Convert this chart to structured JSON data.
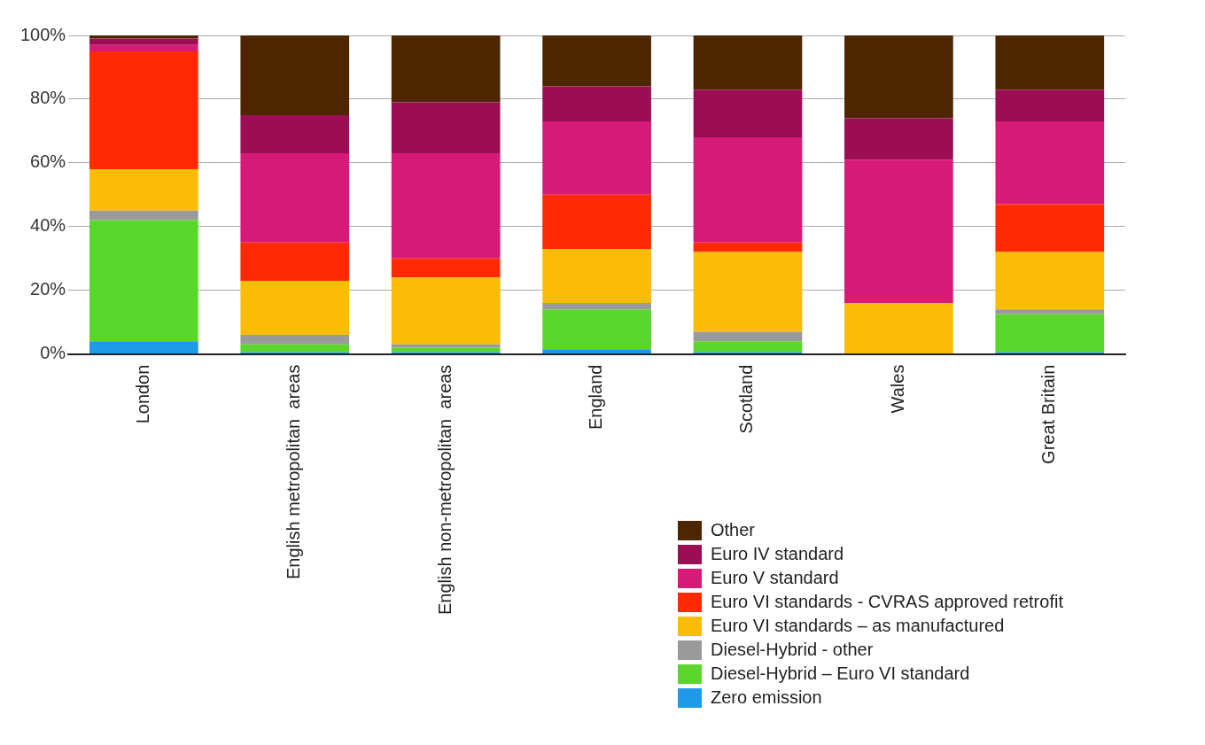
{
  "chart_data": {
    "type": "bar",
    "stacked": true,
    "categories": [
      "London",
      "English metropolitan  areas",
      "English non-metropolitan  areas",
      "England",
      "Scotland",
      "Wales",
      "Great Britain"
    ],
    "ylim": [
      0,
      100
    ],
    "yticks": [
      {
        "value": 0,
        "label": "0%"
      },
      {
        "value": 20,
        "label": "20%"
      },
      {
        "value": 40,
        "label": "40%"
      },
      {
        "value": 60,
        "label": "60%"
      },
      {
        "value": 80,
        "label": "80%"
      },
      {
        "value": 100,
        "label": "100%"
      }
    ],
    "grid": "y",
    "legend": "bottom right",
    "series": [
      {
        "name": "Zero emission",
        "color": "#1e9be8",
        "values": [
          4,
          0.5,
          0.5,
          1.5,
          0.5,
          0,
          0.5
        ]
      },
      {
        "name": "Diesel-Hybrid – Euro VI standard",
        "color": "#5bd62c",
        "values": [
          38,
          2.5,
          1.5,
          12.5,
          3.5,
          0,
          12
        ]
      },
      {
        "name": "Diesel-Hybrid - other",
        "color": "#9a9a9a",
        "values": [
          3,
          3,
          1,
          2,
          3,
          0,
          1.5
        ]
      },
      {
        "name": "Euro VI standards – as manufactured",
        "color": "#fbbc05",
        "values": [
          13,
          17,
          21,
          17,
          25,
          16,
          18
        ]
      },
      {
        "name": "Euro VI standards - CVRAS approved retrofit",
        "color": "#ff2a00",
        "values": [
          37,
          12,
          6,
          17,
          3,
          0,
          15
        ]
      },
      {
        "name": "Euro V standard",
        "color": "#d71a78",
        "values": [
          2,
          28,
          33,
          23,
          33,
          45,
          26
        ]
      },
      {
        "name": "Euro IV standard",
        "color": "#9b0e54",
        "values": [
          2,
          12,
          16,
          11,
          15,
          13,
          10
        ]
      },
      {
        "name": "Other",
        "color": "#4d2600",
        "values": [
          1,
          25,
          21,
          16,
          17,
          26,
          17
        ]
      }
    ]
  }
}
